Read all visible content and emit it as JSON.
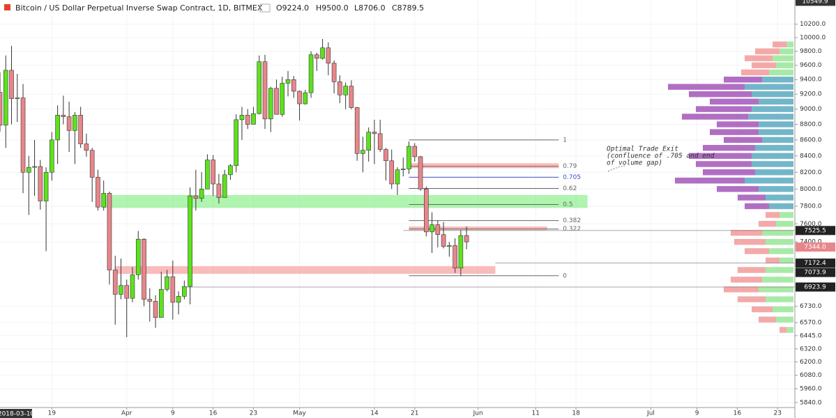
{
  "chart_data": {
    "type": "candlestick",
    "title": "Bitcoin / US Dollar Perpetual Inverse Swap Contract, 1D, BITMEX",
    "ohlc_readout": [
      "O9224.0",
      "H9500.0",
      "L8706.0",
      "C8789.5"
    ],
    "cursor_date": "2018-03-10",
    "log_scale": true,
    "grid": true,
    "up_color": "#5ce21c",
    "down_color": "#e8868a",
    "x": [
      "2018-03-10",
      "2018-03-11",
      "2018-03-12",
      "2018-03-13",
      "2018-03-14",
      "2018-03-15",
      "2018-03-16",
      "2018-03-17",
      "2018-03-18",
      "2018-03-19",
      "2018-03-20",
      "2018-03-21",
      "2018-03-22",
      "2018-03-23",
      "2018-03-24",
      "2018-03-25",
      "2018-03-26",
      "2018-03-27",
      "2018-03-28",
      "2018-03-29",
      "2018-03-30",
      "2018-03-31",
      "2018-04-01",
      "2018-04-02",
      "2018-04-03",
      "2018-04-04",
      "2018-04-05",
      "2018-04-06",
      "2018-04-07",
      "2018-04-08",
      "2018-04-09",
      "2018-04-10",
      "2018-04-11",
      "2018-04-12",
      "2018-04-13",
      "2018-04-14",
      "2018-04-15",
      "2018-04-16",
      "2018-04-17",
      "2018-04-18",
      "2018-04-19",
      "2018-04-20",
      "2018-04-21",
      "2018-04-22",
      "2018-04-23",
      "2018-04-24",
      "2018-04-25",
      "2018-04-26",
      "2018-04-27",
      "2018-04-28",
      "2018-04-29",
      "2018-04-30",
      "2018-05-01",
      "2018-05-02",
      "2018-05-03",
      "2018-05-04",
      "2018-05-05",
      "2018-05-06",
      "2018-05-07",
      "2018-05-08",
      "2018-05-09",
      "2018-05-10",
      "2018-05-11",
      "2018-05-12",
      "2018-05-13",
      "2018-05-14",
      "2018-05-15",
      "2018-05-16",
      "2018-05-17",
      "2018-05-18",
      "2018-05-19",
      "2018-05-20",
      "2018-05-21",
      "2018-05-22",
      "2018-05-23",
      "2018-05-24",
      "2018-05-25",
      "2018-05-26",
      "2018-05-27",
      "2018-05-28",
      "2018-05-29",
      "2018-05-30"
    ],
    "open": [
      9224,
      8790,
      9530,
      9140,
      9150,
      8200,
      8260,
      8270,
      7860,
      8200,
      8600,
      8920,
      8900,
      8720,
      8920,
      8550,
      8470,
      8140,
      7790,
      7950,
      7100,
      6850,
      6940,
      6810,
      7050,
      7430,
      6800,
      6780,
      6620,
      6900,
      7030,
      6770,
      6830,
      6930,
      7920,
      7890,
      8000,
      8350,
      8060,
      7900,
      8170,
      8280,
      8860,
      8920,
      8800,
      8940,
      9650,
      8870,
      9280,
      8930,
      9350,
      9400,
      9240,
      9070,
      9220,
      9750,
      9700,
      9850,
      9630,
      9370,
      9190,
      9310,
      9020,
      8430,
      8470,
      8700,
      8680,
      8480,
      8340,
      8060,
      8230,
      8240,
      8520,
      8390,
      8000,
      7510,
      7590,
      7480,
      7350,
      7360,
      7120,
      7470
    ],
    "high": [
      9500,
      9740,
      9880,
      9480,
      9340,
      8400,
      8600,
      8350,
      8260,
      8700,
      9050,
      9180,
      9100,
      8960,
      9030,
      8680,
      8500,
      8230,
      8100,
      7970,
      7250,
      7220,
      7000,
      7130,
      7520,
      7440,
      6910,
      6840,
      7080,
      7100,
      7200,
      6880,
      6990,
      8020,
      8230,
      8200,
      8420,
      8410,
      8180,
      8230,
      8300,
      8930,
      9030,
      9000,
      9030,
      9740,
      9750,
      9300,
      9400,
      9440,
      9520,
      9450,
      9250,
      9260,
      9800,
      9780,
      9980,
      9930,
      9670,
      9460,
      9360,
      9390,
      9030,
      8640,
      8760,
      8860,
      8860,
      8500,
      8480,
      8260,
      8380,
      8580,
      8560,
      8400,
      8030,
      7730,
      7640,
      7620,
      7400,
      7440,
      7530,
      7570
    ],
    "low": [
      8706,
      8500,
      8800,
      8830,
      7950,
      7700,
      7920,
      7760,
      7300,
      8100,
      8300,
      8800,
      8450,
      8300,
      8500,
      8390,
      7850,
      7750,
      7750,
      6950,
      6550,
      6800,
      6430,
      6770,
      7000,
      6730,
      6580,
      6520,
      6620,
      6880,
      6600,
      6650,
      6800,
      6750,
      7750,
      7850,
      8000,
      7920,
      7830,
      7900,
      8110,
      8200,
      8600,
      8740,
      8800,
      8930,
      8740,
      8700,
      8930,
      8900,
      9170,
      9150,
      8850,
      9060,
      9150,
      9520,
      9680,
      9460,
      9210,
      9080,
      9000,
      9000,
      8340,
      8200,
      8330,
      8300,
      8450,
      8100,
      8000,
      7930,
      8150,
      8180,
      8330,
      7980,
      7460,
      7280,
      7340,
      7330,
      7240,
      7070,
      7040,
      7320
    ],
    "close": [
      8789.5,
      9530,
      9140,
      9150,
      8200,
      8260,
      8270,
      7860,
      8200,
      8600,
      8920,
      8900,
      8720,
      8920,
      8550,
      8470,
      8140,
      7790,
      7950,
      7100,
      6850,
      6940,
      6810,
      7050,
      7430,
      6800,
      6780,
      6620,
      6900,
      7030,
      6770,
      6830,
      6930,
      7920,
      7890,
      8000,
      8350,
      8060,
      7900,
      8170,
      8280,
      8860,
      8920,
      8800,
      8940,
      9650,
      8870,
      9280,
      8930,
      9350,
      9400,
      9240,
      9070,
      9220,
      9750,
      9700,
      9850,
      9630,
      9370,
      9190,
      9310,
      9020,
      8430,
      8470,
      8700,
      8680,
      8480,
      8340,
      8060,
      8230,
      8240,
      8520,
      8390,
      8000,
      7510,
      7590,
      7480,
      7350,
      7360,
      7120,
      7470,
      7400
    ],
    "xlim": [
      "2018-03-10",
      "2018-07-26"
    ],
    "xticks": [
      {
        "value": "2018-03-19",
        "label": "19"
      },
      {
        "value": "2018-04-01",
        "label": "Apr"
      },
      {
        "value": "2018-04-09",
        "label": "9"
      },
      {
        "value": "2018-04-16",
        "label": "16"
      },
      {
        "value": "2018-04-23",
        "label": "23"
      },
      {
        "value": "2018-05-01",
        "label": "May"
      },
      {
        "value": "2018-05-14",
        "label": "14"
      },
      {
        "value": "2018-05-21",
        "label": "21"
      },
      {
        "value": "2018-06-01",
        "label": "Jun"
      },
      {
        "value": "2018-06-11",
        "label": "11"
      },
      {
        "value": "2018-06-18",
        "label": "18"
      },
      {
        "value": "2018-07-01",
        "label": "Jul"
      },
      {
        "value": "2018-07-09",
        "label": "9"
      },
      {
        "value": "2018-07-16",
        "label": "16"
      },
      {
        "value": "2018-07-23",
        "label": "23"
      }
    ],
    "ylim": [
      5797,
      10570
    ],
    "yticks": [
      {
        "value": 10200,
        "label": "10200.0"
      },
      {
        "value": 10000,
        "label": "10000.0"
      },
      {
        "value": 9800,
        "label": "9800.0"
      },
      {
        "value": 9600,
        "label": "9600.0"
      },
      {
        "value": 9400,
        "label": "9400.0"
      },
      {
        "value": 9200,
        "label": "9200.0"
      },
      {
        "value": 9000,
        "label": "9000.0"
      },
      {
        "value": 8800,
        "label": "8800.0"
      },
      {
        "value": 8600,
        "label": "8600.0"
      },
      {
        "value": 8400,
        "label": "8400.0"
      },
      {
        "value": 8200,
        "label": "8200.0"
      },
      {
        "value": 8000,
        "label": "8000.0"
      },
      {
        "value": 7800,
        "label": "7800.0"
      },
      {
        "value": 7600,
        "label": "7600.0"
      },
      {
        "value": 7400,
        "label": "7400.0"
      },
      {
        "value": 6730,
        "label": "6730.0"
      },
      {
        "value": 6570,
        "label": "6570.0"
      },
      {
        "value": 6445,
        "label": "6445.0"
      },
      {
        "value": 6320,
        "label": "6320.0"
      },
      {
        "value": 6200,
        "label": "6200.0"
      },
      {
        "value": 6080,
        "label": "6080.0"
      },
      {
        "value": 5960,
        "label": "5960.0"
      },
      {
        "value": 5840,
        "label": "5840.0"
      }
    ],
    "price_markers": [
      {
        "value": 10549.9,
        "color": "#333333"
      },
      {
        "value": 7525.5,
        "color": "#222222",
        "line_start": "2018-05-19"
      },
      {
        "value": 7344,
        "label": "7344.0",
        "color": "#e8868a"
      },
      {
        "value": 7172.4,
        "color": "#222222",
        "line_start": "2018-06-04"
      },
      {
        "value": 7073.9,
        "color": "#222222"
      },
      {
        "value": 6923.9,
        "color": "#222222",
        "line_start": "2018-04-11"
      }
    ],
    "zones": [
      {
        "from": 7780,
        "to": 7930,
        "start": "2018-03-28",
        "end": "2018-06-20",
        "color": "rgba(110,235,110,0.55)"
      },
      {
        "from": 8250,
        "to": 8310,
        "start": "2018-05-20",
        "end": "2018-06-15",
        "color": "rgba(245,120,120,0.5)"
      },
      {
        "from": 7530,
        "to": 7570,
        "start": "2018-05-20",
        "end": "2018-06-13",
        "color": "rgba(245,120,120,0.5)"
      },
      {
        "from": 7060,
        "to": 7140,
        "start": "2018-03-30",
        "end": "2018-06-04",
        "color": "rgba(245,120,120,0.5)"
      }
    ],
    "fib_range": [
      "2018-05-20",
      "2018-06-15"
    ],
    "fib_levels": [
      {
        "level": 1,
        "price": 8600,
        "color": "#666666"
      },
      {
        "level": 0.79,
        "price": 8272,
        "color": "#666666"
      },
      {
        "level": 0.705,
        "price": 8140,
        "color": "#3f51c8"
      },
      {
        "level": 0.62,
        "price": 8007,
        "color": "#666666"
      },
      {
        "level": 0.5,
        "price": 7820,
        "color": "#666666"
      },
      {
        "level": 0.382,
        "price": 7636,
        "color": "#666666"
      },
      {
        "level": 0.322,
        "price": 7542,
        "color": "#666666"
      },
      {
        "level": 0,
        "price": 7040,
        "color": "#666666"
      }
    ],
    "annotation": {
      "lines": [
        "Optimal Trade Exit",
        "(confluence of .705 and end",
        "of volume gap)"
      ]
    },
    "volume_profile": {
      "prices": [
        6500,
        6600,
        6700,
        6800,
        6900,
        7000,
        7100,
        7200,
        7300,
        7400,
        7500,
        7600,
        7700,
        7800,
        7900,
        8000,
        8100,
        8200,
        8300,
        8400,
        8500,
        8600,
        8700,
        8800,
        8900,
        9000,
        9100,
        9200,
        9300,
        9400,
        9500,
        9600,
        9700,
        9800,
        9900
      ],
      "up": [
        10,
        25,
        30,
        40,
        50,
        45,
        40,
        20,
        35,
        40,
        45,
        25,
        20,
        35,
        40,
        50,
        70,
        55,
        60,
        60,
        55,
        45,
        50,
        50,
        65,
        60,
        50,
        60,
        70,
        45,
        35,
        25,
        30,
        20,
        10
      ],
      "down": [
        10,
        25,
        30,
        40,
        50,
        45,
        40,
        20,
        35,
        45,
        45,
        25,
        20,
        35,
        40,
        60,
        100,
        75,
        80,
        90,
        75,
        55,
        70,
        60,
        95,
        80,
        70,
        90,
        110,
        55,
        40,
        35,
        40,
        35,
        20
      ],
      "value_area": [
        7800,
        9450
      ],
      "up_color": "#98e698",
      "down_color": "#f29a9a",
      "va_up_color": "#5aa9bf",
      "va_down_color": "#a356b9"
    }
  }
}
